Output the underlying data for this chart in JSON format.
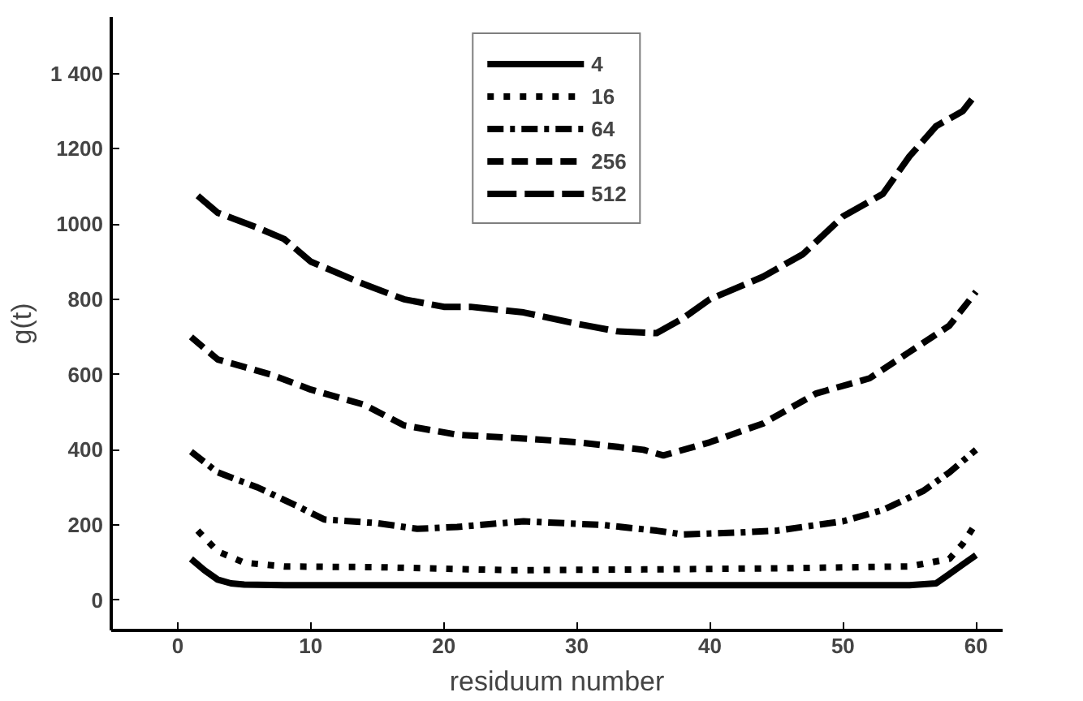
{
  "chart_data": {
    "type": "line",
    "xlabel": "residuum number",
    "ylabel": "g(t)",
    "xlim": [
      -5,
      62
    ],
    "ylim": [
      -80,
      1550
    ],
    "xticks": [
      0,
      10,
      20,
      30,
      40,
      50,
      60
    ],
    "yticks": [
      0,
      200,
      400,
      600,
      800,
      1000,
      1200,
      {
        "value": 1400,
        "label": "1 400"
      }
    ],
    "grid": false,
    "legend": "top",
    "series": [
      {
        "name": "4",
        "color": "#000000",
        "line_style": "solid",
        "x": [
          1,
          2,
          3,
          4,
          5,
          8,
          15,
          25,
          35,
          45,
          55,
          57,
          58,
          59,
          60
        ],
        "values": [
          110,
          80,
          55,
          45,
          42,
          40,
          40,
          40,
          40,
          40,
          40,
          45,
          70,
          95,
          120
        ]
      },
      {
        "name": "16",
        "color": "#000000",
        "line_style": "dotted",
        "x": [
          1.5,
          3,
          5,
          8,
          15,
          25,
          35,
          45,
          55,
          58,
          59,
          60
        ],
        "values": [
          185,
          130,
          100,
          90,
          88,
          80,
          82,
          85,
          90,
          110,
          150,
          205
        ]
      },
      {
        "name": "64",
        "color": "#000000",
        "line_style": "dashdot",
        "x": [
          1,
          3,
          6,
          9,
          11,
          15,
          18,
          21,
          26,
          32,
          36,
          38,
          42,
          45,
          50,
          53,
          56,
          58,
          60
        ],
        "values": [
          395,
          340,
          300,
          250,
          215,
          205,
          190,
          195,
          210,
          200,
          185,
          175,
          180,
          185,
          210,
          240,
          290,
          340,
          400
        ]
      },
      {
        "name": "256",
        "color": "#000000",
        "line_style": "dashed",
        "x": [
          1,
          3,
          7,
          10,
          14,
          17,
          21,
          26,
          30,
          35,
          36.5,
          40,
          44,
          48,
          52,
          55,
          58,
          60
        ],
        "values": [
          700,
          640,
          600,
          560,
          520,
          465,
          440,
          430,
          420,
          400,
          385,
          420,
          470,
          550,
          590,
          660,
          730,
          820
        ]
      },
      {
        "name": "512",
        "color": "#000000",
        "line_style": "longdash",
        "x": [
          1.5,
          3,
          6,
          8,
          10,
          14,
          17,
          20,
          22,
          26,
          30,
          33,
          36,
          38,
          40,
          44,
          47,
          50,
          53,
          55,
          57,
          59,
          60
        ],
        "values": [
          1075,
          1030,
          990,
          960,
          900,
          840,
          800,
          780,
          780,
          765,
          735,
          715,
          710,
          750,
          800,
          860,
          920,
          1020,
          1080,
          1180,
          1260,
          1300,
          1345
        ]
      }
    ]
  }
}
